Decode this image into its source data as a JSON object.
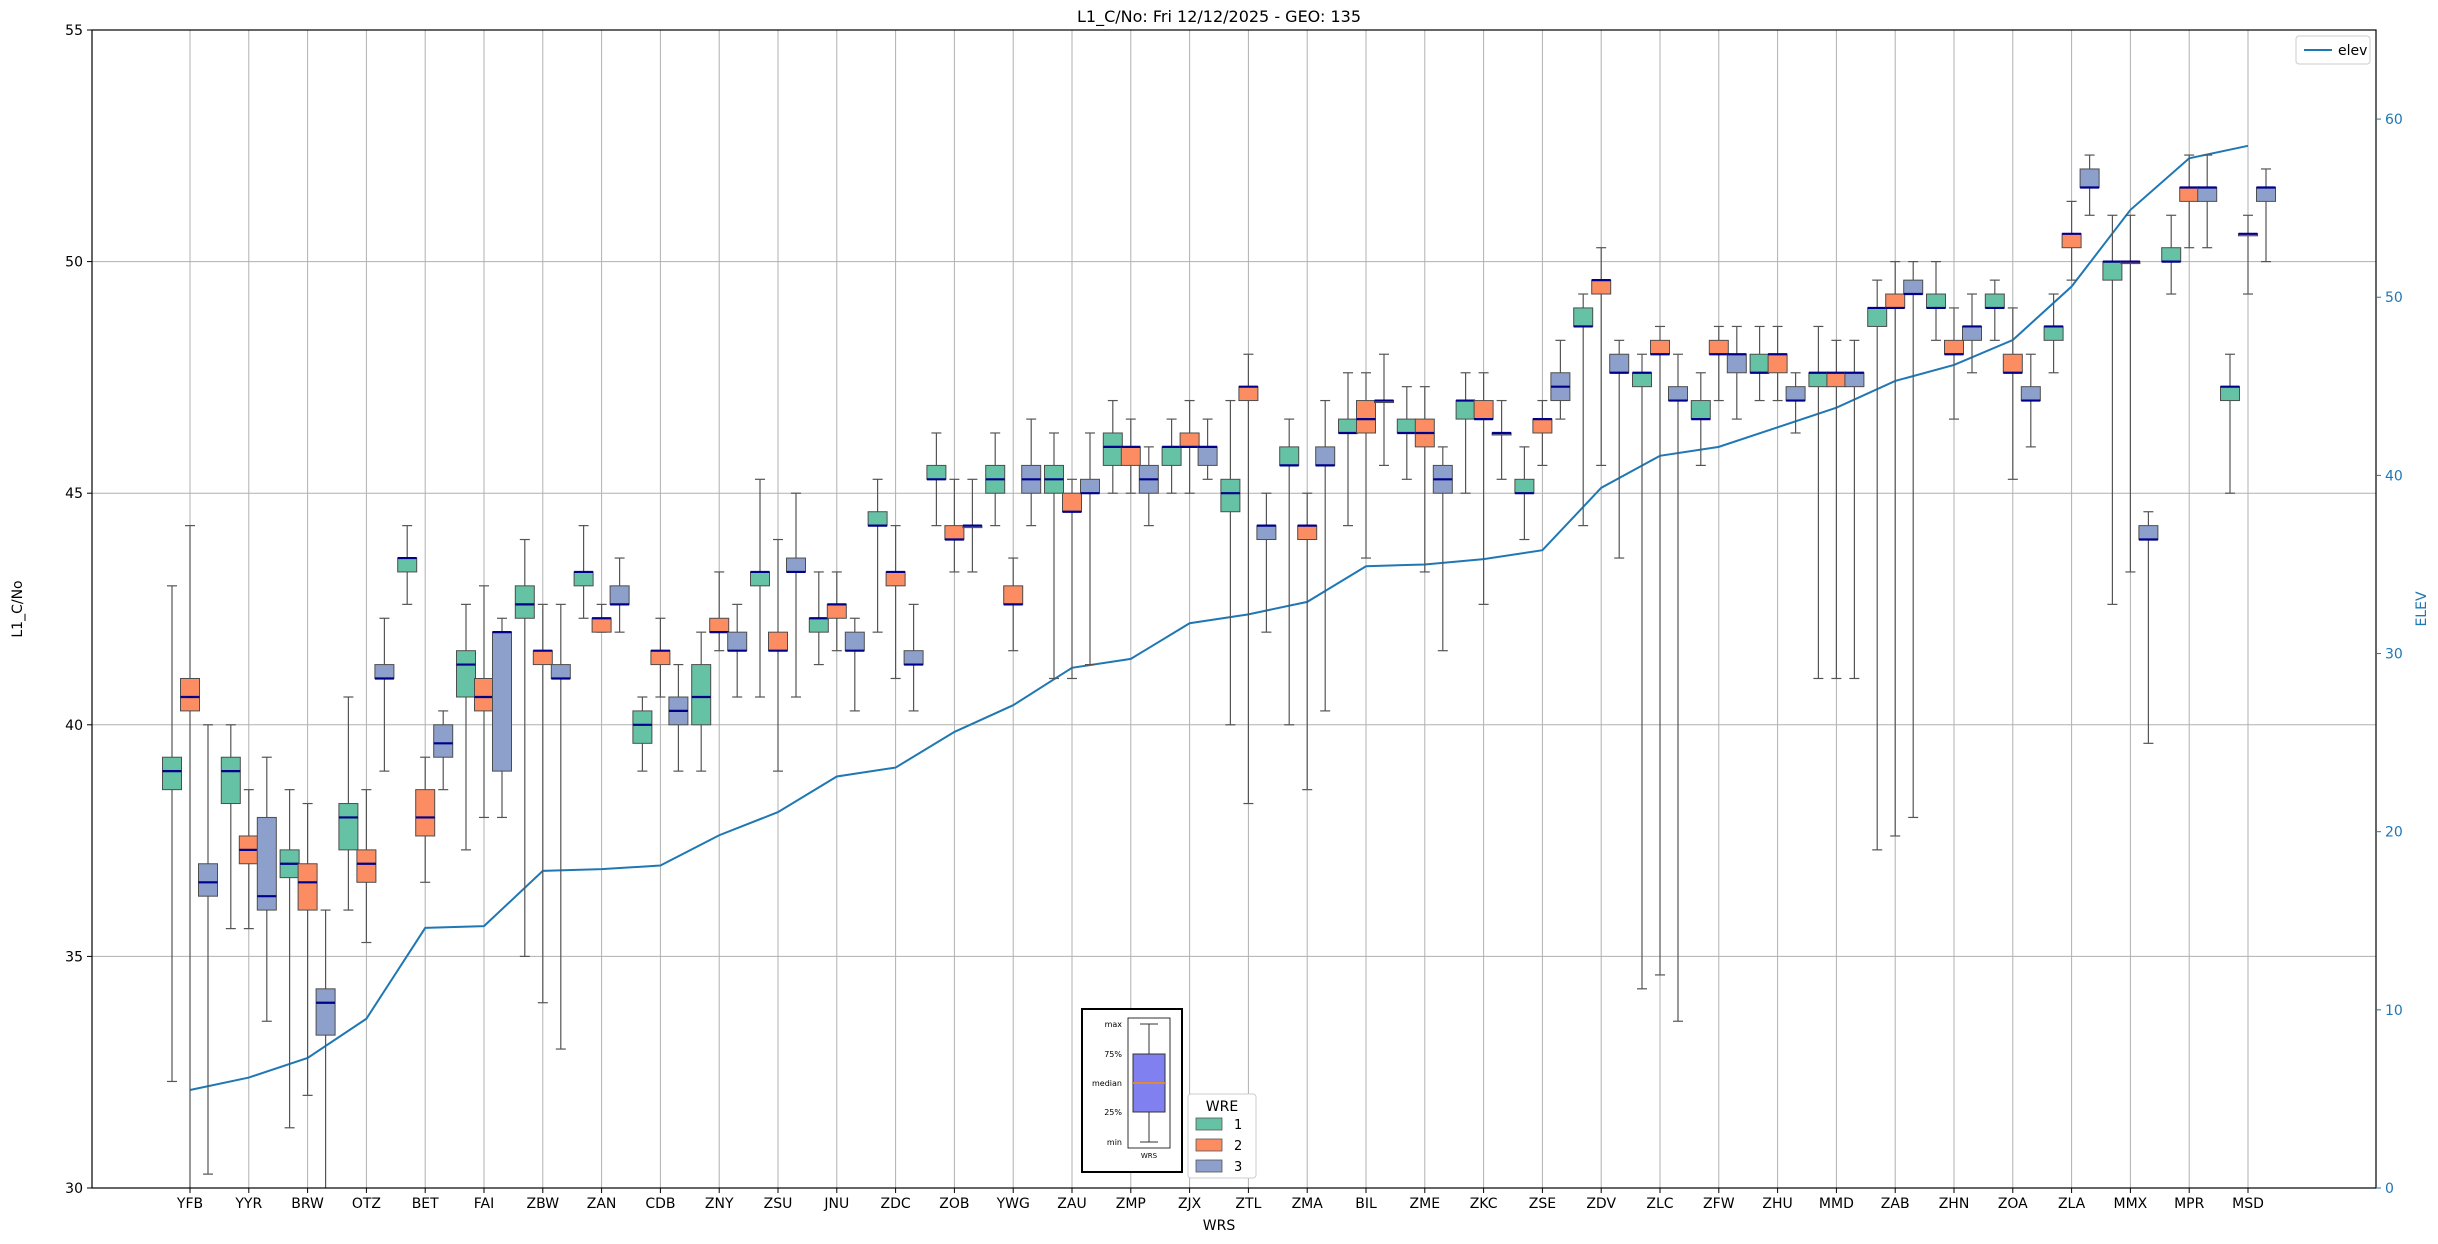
{
  "chart_data": {
    "type": "box",
    "title": "L1_C/No: Fri 12/12/2025 - GEO: 135",
    "xlabel": "WRS",
    "ylabel": "L1_C/No",
    "y2label": "ELEV",
    "ylim": [
      30,
      55
    ],
    "y2lim": [
      0,
      65
    ],
    "yticks": [
      30,
      35,
      40,
      45,
      50,
      55
    ],
    "y2ticks": [
      0,
      10,
      20,
      30,
      40,
      50,
      60
    ],
    "grid": true,
    "line_legend": {
      "label": "elev",
      "position": "top-right"
    },
    "box_legend": {
      "title": "WRE",
      "entries": [
        "1",
        "2",
        "3"
      ],
      "position": "bottom-center"
    },
    "key_inset": {
      "labels": [
        "max",
        "75%",
        "median",
        "25%",
        "min"
      ],
      "caption": "WRS"
    },
    "colors": {
      "wre1": "#66c2a5",
      "wre2": "#fc8d62",
      "wre3": "#8da0cb",
      "median": "#00008b",
      "whisker": "#555555",
      "elev": "#1f77b4",
      "grid": "#b0b0b0",
      "key_box": "#8080f0",
      "key_median": "#ff8c00"
    },
    "categories": [
      "YFB",
      "YYR",
      "BRW",
      "OTZ",
      "BET",
      "FAI",
      "ZBW",
      "ZAN",
      "CDB",
      "ZNY",
      "ZSU",
      "JNU",
      "ZDC",
      "ZOB",
      "YWG",
      "ZAU",
      "ZMP",
      "ZJX",
      "ZTL",
      "ZMA",
      "BIL",
      "ZME",
      "ZKC",
      "ZSE",
      "ZDV",
      "ZLC",
      "ZFW",
      "ZHU",
      "MMD",
      "ZAB",
      "ZHN",
      "ZOA",
      "ZLA",
      "MMX",
      "MPR",
      "MSD"
    ],
    "elev": [
      5.5,
      6.2,
      7.3,
      9.5,
      14.6,
      14.7,
      17.8,
      17.9,
      18.1,
      19.8,
      21.1,
      23.1,
      23.6,
      25.6,
      27.1,
      29.2,
      29.7,
      31.7,
      32.2,
      32.9,
      34.9,
      35.0,
      35.3,
      35.8,
      39.3,
      41.1,
      41.6,
      42.7,
      43.8,
      45.3,
      46.2,
      47.6,
      50.6,
      54.9,
      57.8,
      58.5
    ],
    "series": [
      {
        "name": "1",
        "boxes": [
          {
            "min": 32.3,
            "q1": 38.6,
            "med": 39.0,
            "q3": 39.3,
            "max": 43.0
          },
          {
            "min": 35.6,
            "q1": 38.3,
            "med": 39.0,
            "q3": 39.3,
            "max": 40.0
          },
          {
            "min": 31.3,
            "q1": 36.7,
            "med": 37.0,
            "q3": 37.3,
            "max": 38.6
          },
          {
            "min": 36.0,
            "q1": 37.3,
            "med": 38.0,
            "q3": 38.3,
            "max": 40.6
          },
          {
            "min": 42.6,
            "q1": 43.3,
            "med": 43.6,
            "q3": 43.6,
            "max": 44.3
          },
          {
            "min": 37.3,
            "q1": 40.6,
            "med": 41.3,
            "q3": 41.6,
            "max": 42.6
          },
          {
            "min": 35.0,
            "q1": 42.3,
            "med": 42.6,
            "q3": 43.0,
            "max": 44.0
          },
          {
            "min": 42.3,
            "q1": 43.0,
            "med": 43.3,
            "q3": 43.3,
            "max": 44.3
          },
          {
            "min": 39.0,
            "q1": 39.6,
            "med": 40.0,
            "q3": 40.3,
            "max": 40.6
          },
          {
            "min": 39.0,
            "q1": 40.0,
            "med": 40.6,
            "q3": 41.3,
            "max": 42.0
          },
          {
            "min": 40.6,
            "q1": 43.0,
            "med": 43.3,
            "q3": 43.3,
            "max": 45.3
          },
          {
            "min": 41.3,
            "q1": 42.0,
            "med": 42.3,
            "q3": 42.3,
            "max": 43.3
          },
          {
            "min": 42.0,
            "q1": 44.3,
            "med": 44.3,
            "q3": 44.6,
            "max": 45.3
          },
          {
            "min": 44.3,
            "q1": 45.3,
            "med": 45.3,
            "q3": 45.6,
            "max": 46.3
          },
          {
            "min": 44.3,
            "q1": 45.0,
            "med": 45.3,
            "q3": 45.6,
            "max": 46.3
          },
          {
            "min": 41.0,
            "q1": 45.0,
            "med": 45.3,
            "q3": 45.6,
            "max": 46.3
          },
          {
            "min": 45.0,
            "q1": 45.6,
            "med": 46.0,
            "q3": 46.3,
            "max": 47.0
          },
          {
            "min": 45.0,
            "q1": 45.6,
            "med": 46.0,
            "q3": 46.0,
            "max": 46.6
          },
          {
            "min": 40.0,
            "q1": 44.6,
            "med": 45.0,
            "q3": 45.3,
            "max": 47.0
          },
          {
            "min": 40.0,
            "q1": 45.6,
            "med": 45.6,
            "q3": 46.0,
            "max": 46.6
          },
          {
            "min": 44.3,
            "q1": 46.3,
            "med": 46.3,
            "q3": 46.6,
            "max": 47.6
          },
          {
            "min": 45.3,
            "q1": 46.3,
            "med": 46.3,
            "q3": 46.6,
            "max": 47.3
          },
          {
            "min": 45.0,
            "q1": 46.6,
            "med": 47.0,
            "q3": 47.0,
            "max": 47.6
          },
          {
            "min": 44.0,
            "q1": 45.0,
            "med": 45.0,
            "q3": 45.3,
            "max": 46.0
          },
          {
            "min": 44.3,
            "q1": 48.6,
            "med": 48.6,
            "q3": 49.0,
            "max": 49.3
          },
          {
            "min": 34.3,
            "q1": 47.3,
            "med": 47.6,
            "q3": 47.6,
            "max": 48.0
          },
          {
            "min": 45.6,
            "q1": 46.6,
            "med": 46.6,
            "q3": 47.0,
            "max": 47.6
          },
          {
            "min": 47.0,
            "q1": 47.6,
            "med": 47.6,
            "q3": 48.0,
            "max": 48.6
          },
          {
            "min": 41.0,
            "q1": 47.3,
            "med": 47.6,
            "q3": 47.6,
            "max": 48.6
          },
          {
            "min": 37.3,
            "q1": 48.6,
            "med": 49.0,
            "q3": 49.0,
            "max": 49.6
          },
          {
            "min": 48.3,
            "q1": 49.0,
            "med": 49.0,
            "q3": 49.3,
            "max": 50.0
          },
          {
            "min": 48.3,
            "q1": 49.0,
            "med": 49.0,
            "q3": 49.3,
            "max": 49.6
          },
          {
            "min": 47.6,
            "q1": 48.3,
            "med": 48.6,
            "q3": 48.6,
            "max": 49.3
          },
          {
            "min": 42.6,
            "q1": 49.6,
            "med": 50.0,
            "q3": 50.0,
            "max": 51.0
          },
          {
            "min": 49.3,
            "q1": 50.0,
            "med": 50.0,
            "q3": 50.3,
            "max": 51.0
          },
          {
            "min": 45.0,
            "q1": 47.0,
            "med": 47.3,
            "q3": 47.3,
            "max": 48.0
          }
        ]
      },
      {
        "name": "2",
        "boxes": [
          {
            "min": 30.0,
            "q1": 40.3,
            "med": 40.6,
            "q3": 41.0,
            "max": 44.3
          },
          {
            "min": 35.6,
            "q1": 37.0,
            "med": 37.3,
            "q3": 37.6,
            "max": 38.6
          },
          {
            "min": 32.0,
            "q1": 36.0,
            "med": 36.6,
            "q3": 37.0,
            "max": 38.3
          },
          {
            "min": 35.3,
            "q1": 36.6,
            "med": 37.0,
            "q3": 37.3,
            "max": 38.6
          },
          {
            "min": 36.6,
            "q1": 37.6,
            "med": 38.0,
            "q3": 38.6,
            "max": 39.3
          },
          {
            "min": 38.0,
            "q1": 40.3,
            "med": 40.6,
            "q3": 41.0,
            "max": 43.0
          },
          {
            "min": 34.0,
            "q1": 41.3,
            "med": 41.6,
            "q3": 41.6,
            "max": 42.6
          },
          {
            "min": 42.0,
            "q1": 42.0,
            "med": 42.3,
            "q3": 42.3,
            "max": 42.6
          },
          {
            "min": 40.6,
            "q1": 41.3,
            "med": 41.6,
            "q3": 41.6,
            "max": 42.3
          },
          {
            "min": 41.6,
            "q1": 42.0,
            "med": 42.0,
            "q3": 42.3,
            "max": 43.3
          },
          {
            "min": 39.0,
            "q1": 41.6,
            "med": 41.6,
            "q3": 42.0,
            "max": 44.0
          },
          {
            "min": 41.6,
            "q1": 42.3,
            "med": 42.6,
            "q3": 42.6,
            "max": 43.3
          },
          {
            "min": 41.0,
            "q1": 43.0,
            "med": 43.3,
            "q3": 43.3,
            "max": 44.3
          },
          {
            "min": 43.3,
            "q1": 44.0,
            "med": 44.0,
            "q3": 44.3,
            "max": 45.3
          },
          {
            "min": 41.6,
            "q1": 42.6,
            "med": 42.6,
            "q3": 43.0,
            "max": 43.6
          },
          {
            "min": 41.0,
            "q1": 44.6,
            "med": 44.6,
            "q3": 45.0,
            "max": 45.3
          },
          {
            "min": 45.0,
            "q1": 45.6,
            "med": 46.0,
            "q3": 46.0,
            "max": 46.6
          },
          {
            "min": 45.0,
            "q1": 46.0,
            "med": 46.0,
            "q3": 46.3,
            "max": 47.0
          },
          {
            "min": 38.3,
            "q1": 47.0,
            "med": 47.3,
            "q3": 47.3,
            "max": 48.0
          },
          {
            "min": 38.6,
            "q1": 44.0,
            "med": 44.3,
            "q3": 44.3,
            "max": 45.0
          },
          {
            "min": 43.6,
            "q1": 46.3,
            "med": 46.6,
            "q3": 47.0,
            "max": 47.6
          },
          {
            "min": 43.3,
            "q1": 46.0,
            "med": 46.3,
            "q3": 46.6,
            "max": 47.3
          },
          {
            "min": 42.6,
            "q1": 46.6,
            "med": 46.6,
            "q3": 47.0,
            "max": 47.6
          },
          {
            "min": 45.6,
            "q1": 46.3,
            "med": 46.6,
            "q3": 46.6,
            "max": 47.0
          },
          {
            "min": 45.6,
            "q1": 49.3,
            "med": 49.6,
            "q3": 49.6,
            "max": 50.3
          },
          {
            "min": 34.6,
            "q1": 48.0,
            "med": 48.0,
            "q3": 48.3,
            "max": 48.6
          },
          {
            "min": 47.0,
            "q1": 48.0,
            "med": 48.0,
            "q3": 48.3,
            "max": 48.6
          },
          {
            "min": 47.0,
            "q1": 47.6,
            "med": 48.0,
            "q3": 48.0,
            "max": 48.6
          },
          {
            "min": 41.0,
            "q1": 47.3,
            "med": 47.6,
            "q3": 47.6,
            "max": 48.3
          },
          {
            "min": 37.6,
            "q1": 49.0,
            "med": 49.0,
            "q3": 49.3,
            "max": 50.0
          },
          {
            "min": 46.6,
            "q1": 48.0,
            "med": 48.0,
            "q3": 48.3,
            "max": 49.0
          },
          {
            "min": 45.3,
            "q1": 47.6,
            "med": 47.6,
            "q3": 48.0,
            "max": 49.0
          },
          {
            "min": 49.6,
            "q1": 50.3,
            "med": 50.6,
            "q3": 50.6,
            "max": 51.3
          },
          {
            "min": 43.3,
            "q1": 50.0,
            "med": 50.0,
            "q3": 50.0,
            "max": 51.0
          },
          {
            "min": 50.3,
            "q1": 51.3,
            "med": 51.6,
            "q3": 51.6,
            "max": 52.3
          },
          {
            "min": 49.3,
            "q1": 50.6,
            "med": 50.6,
            "q3": 50.6,
            "max": 51.0
          }
        ]
      },
      {
        "name": "3",
        "boxes": [
          {
            "min": 30.3,
            "q1": 36.3,
            "med": 36.6,
            "q3": 37.0,
            "max": 40.0
          },
          {
            "min": 33.6,
            "q1": 36.0,
            "med": 36.3,
            "q3": 38.0,
            "max": 39.3
          },
          {
            "min": 30.0,
            "q1": 33.3,
            "med": 34.0,
            "q3": 34.3,
            "max": 36.0
          },
          {
            "min": 39.0,
            "q1": 41.0,
            "med": 41.0,
            "q3": 41.3,
            "max": 42.3
          },
          {
            "min": 38.6,
            "q1": 39.3,
            "med": 39.6,
            "q3": 40.0,
            "max": 40.3
          },
          {
            "min": 38.0,
            "q1": 39.0,
            "med": 42.0,
            "q3": 42.0,
            "max": 42.3
          },
          {
            "min": 33.0,
            "q1": 41.0,
            "med": 41.0,
            "q3": 41.3,
            "max": 42.6
          },
          {
            "min": 42.0,
            "q1": 42.6,
            "med": 42.6,
            "q3": 43.0,
            "max": 43.6
          },
          {
            "min": 39.0,
            "q1": 40.0,
            "med": 40.3,
            "q3": 40.6,
            "max": 41.3
          },
          {
            "min": 40.6,
            "q1": 41.6,
            "med": 41.6,
            "q3": 42.0,
            "max": 42.6
          },
          {
            "min": 40.6,
            "q1": 43.3,
            "med": 43.3,
            "q3": 43.6,
            "max": 45.0
          },
          {
            "min": 40.3,
            "q1": 41.6,
            "med": 41.6,
            "q3": 42.0,
            "max": 42.3
          },
          {
            "min": 40.3,
            "q1": 41.3,
            "med": 41.3,
            "q3": 41.6,
            "max": 42.6
          },
          {
            "min": 43.3,
            "q1": 44.3,
            "med": 44.3,
            "q3": 44.3,
            "max": 45.3
          },
          {
            "min": 44.3,
            "q1": 45.0,
            "med": 45.3,
            "q3": 45.6,
            "max": 46.6
          },
          {
            "min": 41.3,
            "q1": 45.0,
            "med": 45.0,
            "q3": 45.3,
            "max": 46.3
          },
          {
            "min": 44.3,
            "q1": 45.0,
            "med": 45.3,
            "q3": 45.6,
            "max": 46.0
          },
          {
            "min": 45.3,
            "q1": 45.6,
            "med": 46.0,
            "q3": 46.0,
            "max": 46.6
          },
          {
            "min": 42.0,
            "q1": 44.0,
            "med": 44.3,
            "q3": 44.3,
            "max": 45.0
          },
          {
            "min": 40.3,
            "q1": 45.6,
            "med": 45.6,
            "q3": 46.0,
            "max": 47.0
          },
          {
            "min": 45.6,
            "q1": 47.0,
            "med": 47.0,
            "q3": 47.0,
            "max": 48.0
          },
          {
            "min": 41.6,
            "q1": 45.0,
            "med": 45.3,
            "q3": 45.6,
            "max": 46.0
          },
          {
            "min": 45.3,
            "q1": 46.3,
            "med": 46.3,
            "q3": 46.3,
            "max": 47.0
          },
          {
            "min": 46.6,
            "q1": 47.0,
            "med": 47.3,
            "q3": 47.6,
            "max": 48.3
          },
          {
            "min": 43.6,
            "q1": 47.6,
            "med": 47.6,
            "q3": 48.0,
            "max": 48.3
          },
          {
            "min": 33.6,
            "q1": 47.0,
            "med": 47.0,
            "q3": 47.3,
            "max": 48.0
          },
          {
            "min": 46.6,
            "q1": 47.6,
            "med": 48.0,
            "q3": 48.0,
            "max": 48.6
          },
          {
            "min": 46.3,
            "q1": 47.0,
            "med": 47.0,
            "q3": 47.3,
            "max": 47.6
          },
          {
            "min": 41.0,
            "q1": 47.3,
            "med": 47.6,
            "q3": 47.6,
            "max": 48.3
          },
          {
            "min": 38.0,
            "q1": 49.3,
            "med": 49.3,
            "q3": 49.6,
            "max": 50.0
          },
          {
            "min": 47.6,
            "q1": 48.3,
            "med": 48.6,
            "q3": 48.6,
            "max": 49.3
          },
          {
            "min": 46.0,
            "q1": 47.0,
            "med": 47.0,
            "q3": 47.3,
            "max": 48.0
          },
          {
            "min": 51.0,
            "q1": 51.6,
            "med": 51.6,
            "q3": 52.0,
            "max": 52.3
          },
          {
            "min": 39.6,
            "q1": 44.0,
            "med": 44.0,
            "q3": 44.3,
            "max": 44.6
          },
          {
            "min": 50.3,
            "q1": 51.3,
            "med": 51.6,
            "q3": 51.6,
            "max": 52.3
          },
          {
            "min": 50.0,
            "q1": 51.3,
            "med": 51.6,
            "q3": 51.6,
            "max": 52.0
          }
        ]
      }
    ]
  }
}
